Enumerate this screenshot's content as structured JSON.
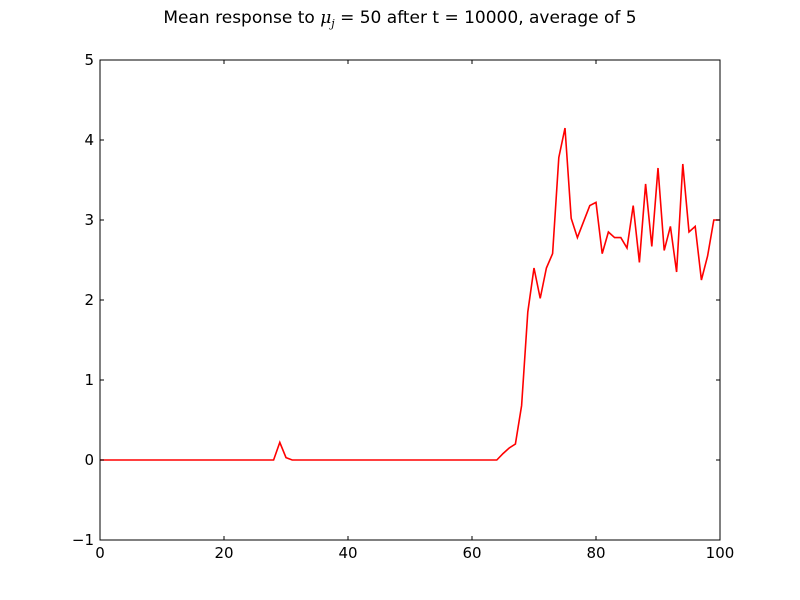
{
  "chart_data": {
    "type": "line",
    "title_prefix": "Mean response to ",
    "title_symbol": "μ",
    "title_subscript": "j",
    "title_suffix": " = 50 after t = 10000, average of 5",
    "xlabel": "",
    "ylabel": "",
    "xlim": [
      0,
      100
    ],
    "ylim": [
      -1,
      5
    ],
    "xticks": [
      0,
      20,
      40,
      60,
      80,
      100
    ],
    "yticks": [
      -1,
      0,
      1,
      2,
      3,
      4,
      5
    ],
    "grid": false,
    "series": [
      {
        "color": "#ff0000",
        "x": [
          0,
          1,
          2,
          3,
          4,
          5,
          6,
          7,
          8,
          9,
          10,
          11,
          12,
          13,
          14,
          15,
          16,
          17,
          18,
          19,
          20,
          21,
          22,
          23,
          24,
          25,
          26,
          27,
          28,
          29,
          30,
          31,
          32,
          33,
          34,
          35,
          36,
          37,
          38,
          39,
          40,
          41,
          42,
          43,
          44,
          45,
          46,
          47,
          48,
          49,
          50,
          51,
          52,
          53,
          54,
          55,
          56,
          57,
          58,
          59,
          60,
          61,
          62,
          63,
          64,
          65,
          66,
          67,
          68,
          69,
          70,
          71,
          72,
          73,
          74,
          75,
          76,
          77,
          78,
          79,
          80,
          81,
          82,
          83,
          84,
          85,
          86,
          87,
          88,
          89,
          90,
          91,
          92,
          93,
          94,
          95,
          96,
          97,
          98,
          99,
          100
        ],
        "y": [
          0,
          0,
          0,
          0,
          0,
          0,
          0,
          0,
          0,
          0,
          0,
          0,
          0,
          0,
          0,
          0,
          0,
          0,
          0,
          0,
          0,
          0,
          0,
          0,
          0,
          0,
          0,
          0,
          0,
          0.22,
          0.03,
          0,
          0,
          0,
          0,
          0,
          0,
          0,
          0,
          0,
          0,
          0,
          0,
          0,
          0,
          0,
          0,
          0,
          0,
          0,
          0,
          0,
          0,
          0,
          0,
          0,
          0,
          0,
          0,
          0,
          0,
          0,
          0,
          0,
          0,
          0.08,
          0.15,
          0.2,
          0.68,
          1.85,
          2.4,
          2.02,
          2.4,
          2.58,
          3.78,
          4.15,
          3.02,
          2.78,
          2.98,
          3.18,
          3.22,
          2.58,
          2.85,
          2.78,
          2.78,
          2.65,
          3.18,
          2.47,
          3.45,
          2.67,
          3.65,
          2.62,
          2.92,
          2.35,
          3.7,
          2.85,
          2.92,
          2.25,
          2.55,
          3.0,
          3.0
        ]
      }
    ]
  }
}
